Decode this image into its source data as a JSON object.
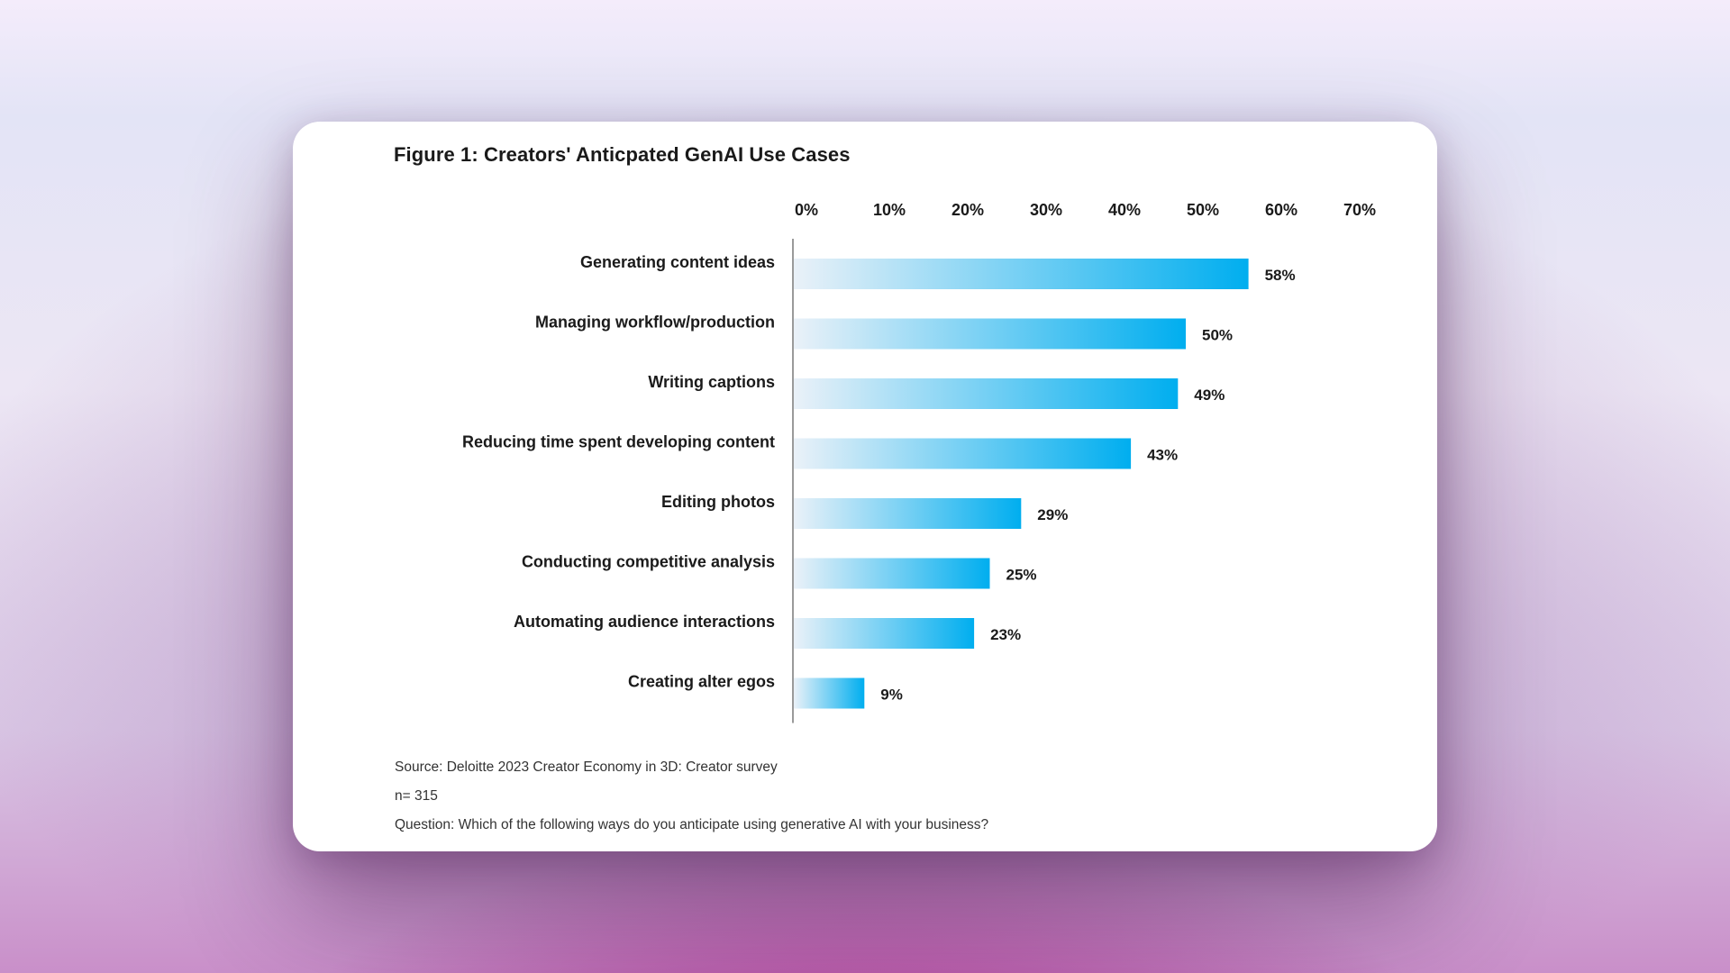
{
  "chart_data": {
    "type": "bar",
    "orientation": "horizontal",
    "title": "Figure 1: Creators' Anticpated GenAI Use Cases",
    "categories": [
      "Generating content ideas",
      "Managing workflow/production",
      "Writing captions",
      "Reducing time spent developing content",
      "Editing photos",
      "Conducting competitive analysis",
      "Automating audience interactions",
      "Creating alter egos"
    ],
    "values": [
      58,
      50,
      49,
      43,
      29,
      25,
      23,
      9
    ],
    "value_labels": [
      "58%",
      "50%",
      "49%",
      "43%",
      "29%",
      "25%",
      "23%",
      "9%"
    ],
    "xlim": [
      0,
      70
    ],
    "x_ticks": [
      0,
      10,
      20,
      30,
      40,
      50,
      60,
      70
    ],
    "x_tick_labels": [
      "0%",
      "10%",
      "20%",
      "30%",
      "40%",
      "50%",
      "60%",
      "70%"
    ],
    "xaxis_position": "top",
    "grid": false,
    "bar_color_start": "#eaf1f8",
    "bar_color_end": "#00aeef",
    "xlabel": "",
    "ylabel": ""
  },
  "notes": {
    "source": "Source: Deloitte 2023 Creator Economy in 3D: Creator survey",
    "sample": "n= 315",
    "question": "Question: Which of the following ways do you anticipate using generative AI with your business?"
  }
}
